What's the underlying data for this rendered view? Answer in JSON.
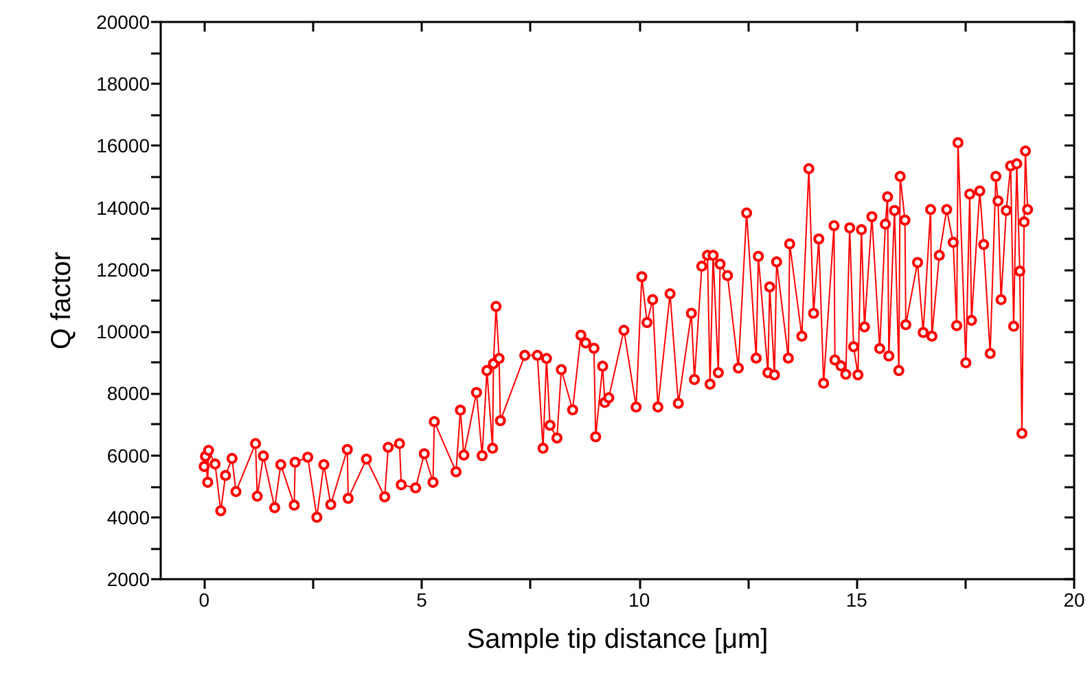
{
  "chart_data": {
    "type": "line",
    "xlabel": "Sample tip distance [μm]",
    "ylabel": "Q factor",
    "xlim": [
      -1,
      20
    ],
    "xticks": [
      0,
      {
        "value": 2.5,
        "label": null
      },
      5,
      {
        "value": 7.5,
        "label": null
      },
      10,
      {
        "value": 12.5,
        "label": null
      },
      15,
      {
        "value": 17.5,
        "label": null
      },
      20
    ],
    "ylim": [
      2000,
      20000
    ],
    "yticks": [
      2000,
      {
        "value": 3000,
        "label": null
      },
      4000,
      {
        "value": 5000,
        "label": null
      },
      6000,
      {
        "value": 7000,
        "label": null
      },
      8000,
      {
        "value": 9000,
        "label": null
      },
      10000,
      {
        "value": 11000,
        "label": null
      },
      12000,
      {
        "value": 13000,
        "label": null
      },
      14000,
      {
        "value": 15000,
        "label": null
      },
      16000,
      {
        "value": 17000,
        "label": null
      },
      18000,
      {
        "value": 19000,
        "label": null
      },
      20000
    ],
    "grid": false,
    "marker": "circle",
    "line_style": "solid",
    "series": [
      {
        "color": "#ff0000",
        "x": [
          0.0,
          0.03,
          0.08,
          0.1,
          0.25,
          0.38,
          0.49,
          0.64,
          0.73,
          1.18,
          1.22,
          1.36,
          1.62,
          1.76,
          2.07,
          2.09,
          2.38,
          2.59,
          2.75,
          2.91,
          3.29,
          3.31,
          3.73,
          4.15,
          4.23,
          4.49,
          4.53,
          4.86,
          5.06,
          5.26,
          5.29,
          5.79,
          5.89,
          5.97,
          6.26,
          6.39,
          6.5,
          6.63,
          6.65,
          6.71,
          6.78,
          6.81,
          7.37,
          7.66,
          7.79,
          7.87,
          7.95,
          8.11,
          8.21,
          8.47,
          8.66,
          8.77,
          8.96,
          9.0,
          9.16,
          9.21,
          9.3,
          9.65,
          9.93,
          10.06,
          10.18,
          10.31,
          10.43,
          10.71,
          10.9,
          11.2,
          11.27,
          11.44,
          11.57,
          11.63,
          11.7,
          11.82,
          11.86,
          12.03,
          12.28,
          12.47,
          12.69,
          12.74,
          12.96,
          13.0,
          13.11,
          13.16,
          13.43,
          13.46,
          13.74,
          13.9,
          14.01,
          14.13,
          14.24,
          14.48,
          14.5,
          14.64,
          14.75,
          14.84,
          14.93,
          15.03,
          15.11,
          15.18,
          15.35,
          15.53,
          15.66,
          15.71,
          15.74,
          15.87,
          15.97,
          16.0,
          16.11,
          16.13,
          16.4,
          16.53,
          16.7,
          16.73,
          16.9,
          17.07,
          17.22,
          17.3,
          17.33,
          17.51,
          17.6,
          17.64,
          17.83,
          17.92,
          18.07,
          18.2,
          18.25,
          18.32,
          18.44,
          18.54,
          18.61,
          18.68,
          18.75,
          18.8,
          18.85,
          18.88,
          18.93
        ],
        "values": [
          5640,
          5970,
          5130,
          6160,
          5720,
          4210,
          5350,
          5900,
          4830,
          6380,
          4680,
          5980,
          4310,
          5700,
          4390,
          5780,
          5940,
          4000,
          5700,
          4410,
          6190,
          4610,
          5880,
          4660,
          6260,
          6380,
          5050,
          4950,
          6050,
          5130,
          7090,
          5470,
          7460,
          6010,
          8030,
          5990,
          8740,
          6230,
          8960,
          10810,
          9130,
          7120,
          9230,
          9230,
          6230,
          9130,
          6970,
          6560,
          8770,
          7470,
          9880,
          9630,
          9460,
          6600,
          8880,
          7710,
          7860,
          10040,
          7560,
          11770,
          10290,
          11030,
          7560,
          11220,
          7680,
          10590,
          8450,
          12110,
          12460,
          8300,
          12460,
          8670,
          12180,
          11810,
          8820,
          13830,
          9140,
          12430,
          8670,
          11440,
          8600,
          12250,
          9140,
          12830,
          9850,
          15260,
          10590,
          12990,
          8330,
          13420,
          9080,
          8890,
          8620,
          13350,
          9510,
          8600,
          13290,
          10150,
          13710,
          9450,
          13470,
          14350,
          9210,
          13910,
          8740,
          15010,
          13600,
          10220,
          12230,
          9970,
          13940,
          9850,
          12460,
          13940,
          12880,
          10190,
          16100,
          8990,
          14440,
          10360,
          14540,
          12810,
          9290,
          15010,
          14220,
          11030,
          13910,
          15350,
          10170,
          15420,
          11950,
          6710,
          13540,
          15830,
          13940
        ]
      }
    ]
  }
}
